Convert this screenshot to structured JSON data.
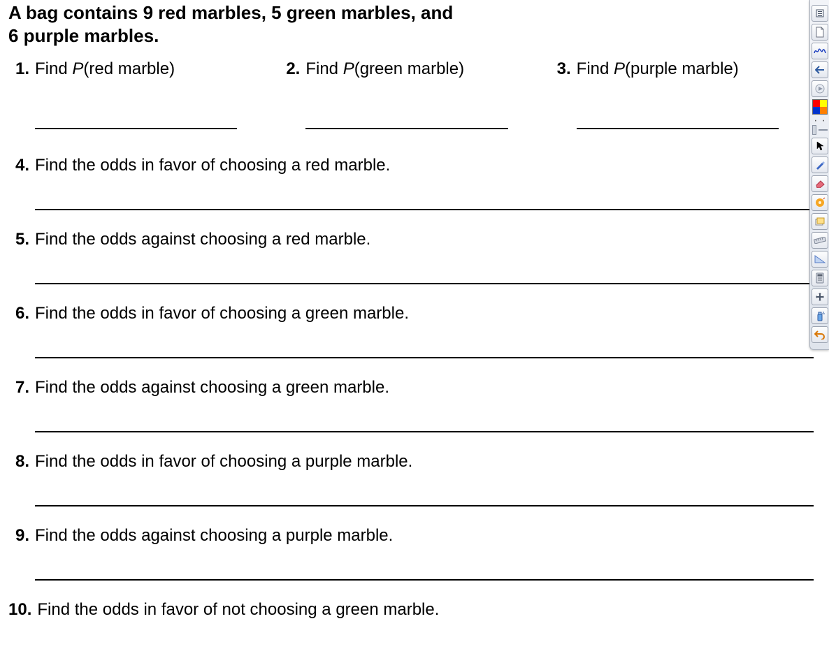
{
  "worksheet": {
    "intro_line1": "A bag contains 9 red marbles, 5 green marbles, and",
    "intro_line2": "6 purple marbles.",
    "intro_fontsize_pt": 20,
    "body_fontsize_pt": 18,
    "text_color": "#000000",
    "background_color": "#ffffff",
    "answer_line_color": "#000000",
    "top_row": [
      {
        "num": "1.",
        "prefix": "Find ",
        "pvar": "P",
        "paren": "(red marble)"
      },
      {
        "num": "2.",
        "prefix": "Find ",
        "pvar": "P",
        "paren": "(green marble)"
      },
      {
        "num": "3.",
        "prefix": "Find ",
        "pvar": "P",
        "paren": "(purple marble)"
      }
    ],
    "long_questions": [
      {
        "num": "4.",
        "text": "Find the odds in favor of choosing a red marble."
      },
      {
        "num": "5.",
        "text": "Find the odds against choosing a red marble."
      },
      {
        "num": "6.",
        "text": "Find the odds in favor of choosing a green marble."
      },
      {
        "num": "7.",
        "text": "Find the odds against choosing a green marble."
      },
      {
        "num": "8.",
        "text": "Find the odds in favor of choosing a purple marble."
      },
      {
        "num": "9.",
        "text": "Find the odds against choosing a purple marble."
      },
      {
        "num": "10.",
        "text": "Find the odds in favor of not choosing a green marble."
      }
    ]
  },
  "toolbar": {
    "background_gradient": [
      "#f2f4f8",
      "#dfe4ec"
    ],
    "border_color": "#a9b0bc",
    "colors": {
      "red": "#ff0000",
      "yellow": "#ffff00",
      "blue": "#0033cc",
      "orange": "#ff7f00"
    },
    "tools": [
      {
        "name": "menu-icon"
      },
      {
        "name": "page-icon"
      },
      {
        "name": "handwriting-icon"
      },
      {
        "name": "back-icon"
      },
      {
        "name": "forward-icon"
      },
      {
        "name": "color-palette"
      },
      {
        "name": "more-dots"
      },
      {
        "name": "thickness-picker"
      },
      {
        "name": "pointer-icon"
      },
      {
        "name": "pen-icon"
      },
      {
        "name": "eraser-icon"
      },
      {
        "name": "burn-disc-icon"
      },
      {
        "name": "stack-icon"
      },
      {
        "name": "ruler-icon"
      },
      {
        "name": "triangle-icon"
      },
      {
        "name": "calculator-icon"
      },
      {
        "name": "move-icon"
      },
      {
        "name": "spray-icon"
      },
      {
        "name": "undo-icon"
      }
    ]
  }
}
